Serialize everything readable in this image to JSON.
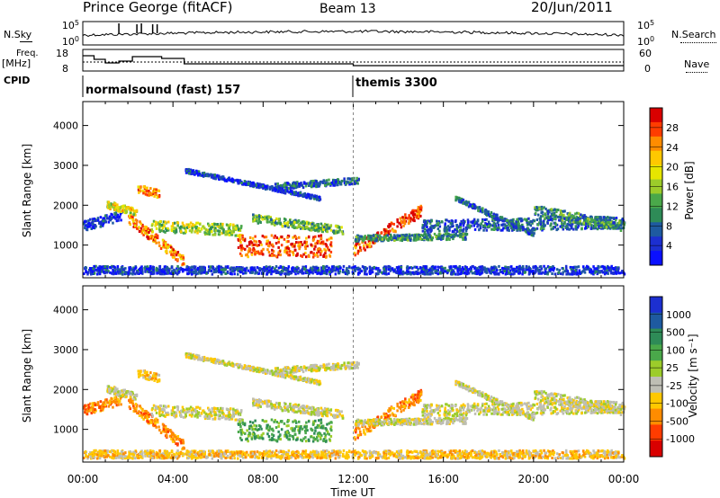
{
  "header": {
    "station": "Prince George (fitACF)",
    "beam": "Beam 13",
    "date": "20/Jun/2011"
  },
  "noise_panel": {
    "left_label": "N.Sky",
    "right_label": "N.Search",
    "left_ticks": [
      "10^5",
      "10^0"
    ],
    "right_ticks": [
      "10^5",
      "10^0"
    ]
  },
  "freq_panel": {
    "left_label_line1": "Freq.",
    "left_label_line2": "[MHz]",
    "right_label": "Nave",
    "left_ticks": [
      "18",
      "8"
    ],
    "right_ticks": [
      "60",
      "0"
    ]
  },
  "cpid": {
    "label": "CPID",
    "segments": [
      {
        "name": "normalsound (fast) 157",
        "start_hour": 0
      },
      {
        "name": "themis 3300",
        "start_hour": 12
      }
    ]
  },
  "chart_data": [
    {
      "type": "heatmap",
      "panel": "power",
      "ylabel": "Slant Range [km]",
      "yticks": [
        1000,
        2000,
        3000,
        4000
      ],
      "ylim": [
        180,
        4600
      ],
      "xlim": [
        0,
        24
      ],
      "colorbar": {
        "label": "Power [dB]",
        "ticks": [
          "28",
          "24",
          "20",
          "16",
          "12",
          "8",
          "4"
        ],
        "colors": [
          "#d90000",
          "#ff3c00",
          "#ff8c00",
          "#ffc800",
          "#e6e600",
          "#9ccc2a",
          "#4aa84a",
          "#2e8b57",
          "#1e5aa0",
          "#1c2fd0",
          "#0a10ff"
        ]
      }
    },
    {
      "type": "heatmap",
      "panel": "velocity",
      "ylabel": "Slant Range [km]",
      "yticks": [
        1000,
        2000,
        3000,
        4000
      ],
      "ylim": [
        180,
        4600
      ],
      "xlim": [
        0,
        24
      ],
      "colorbar": {
        "label": "Velocity [m s⁻¹]",
        "ticks": [
          "1000",
          "500",
          "100",
          "25",
          "-25",
          "-100",
          "-500",
          "-1000"
        ],
        "colors": [
          "#1c2fd0",
          "#1e5aa0",
          "#2e8b57",
          "#4aa84a",
          "#9ccc2a",
          "#bebeb4",
          "#ffc800",
          "#ff8c00",
          "#ff3c00",
          "#d90000"
        ]
      }
    }
  ],
  "x_axis": {
    "label": "Time UT",
    "ticks": [
      "00:00",
      "04:00",
      "08:00",
      "12:00",
      "16:00",
      "20:00",
      "00:00"
    ]
  },
  "ticks_sup": "5",
  "ticks_sup0": "0"
}
